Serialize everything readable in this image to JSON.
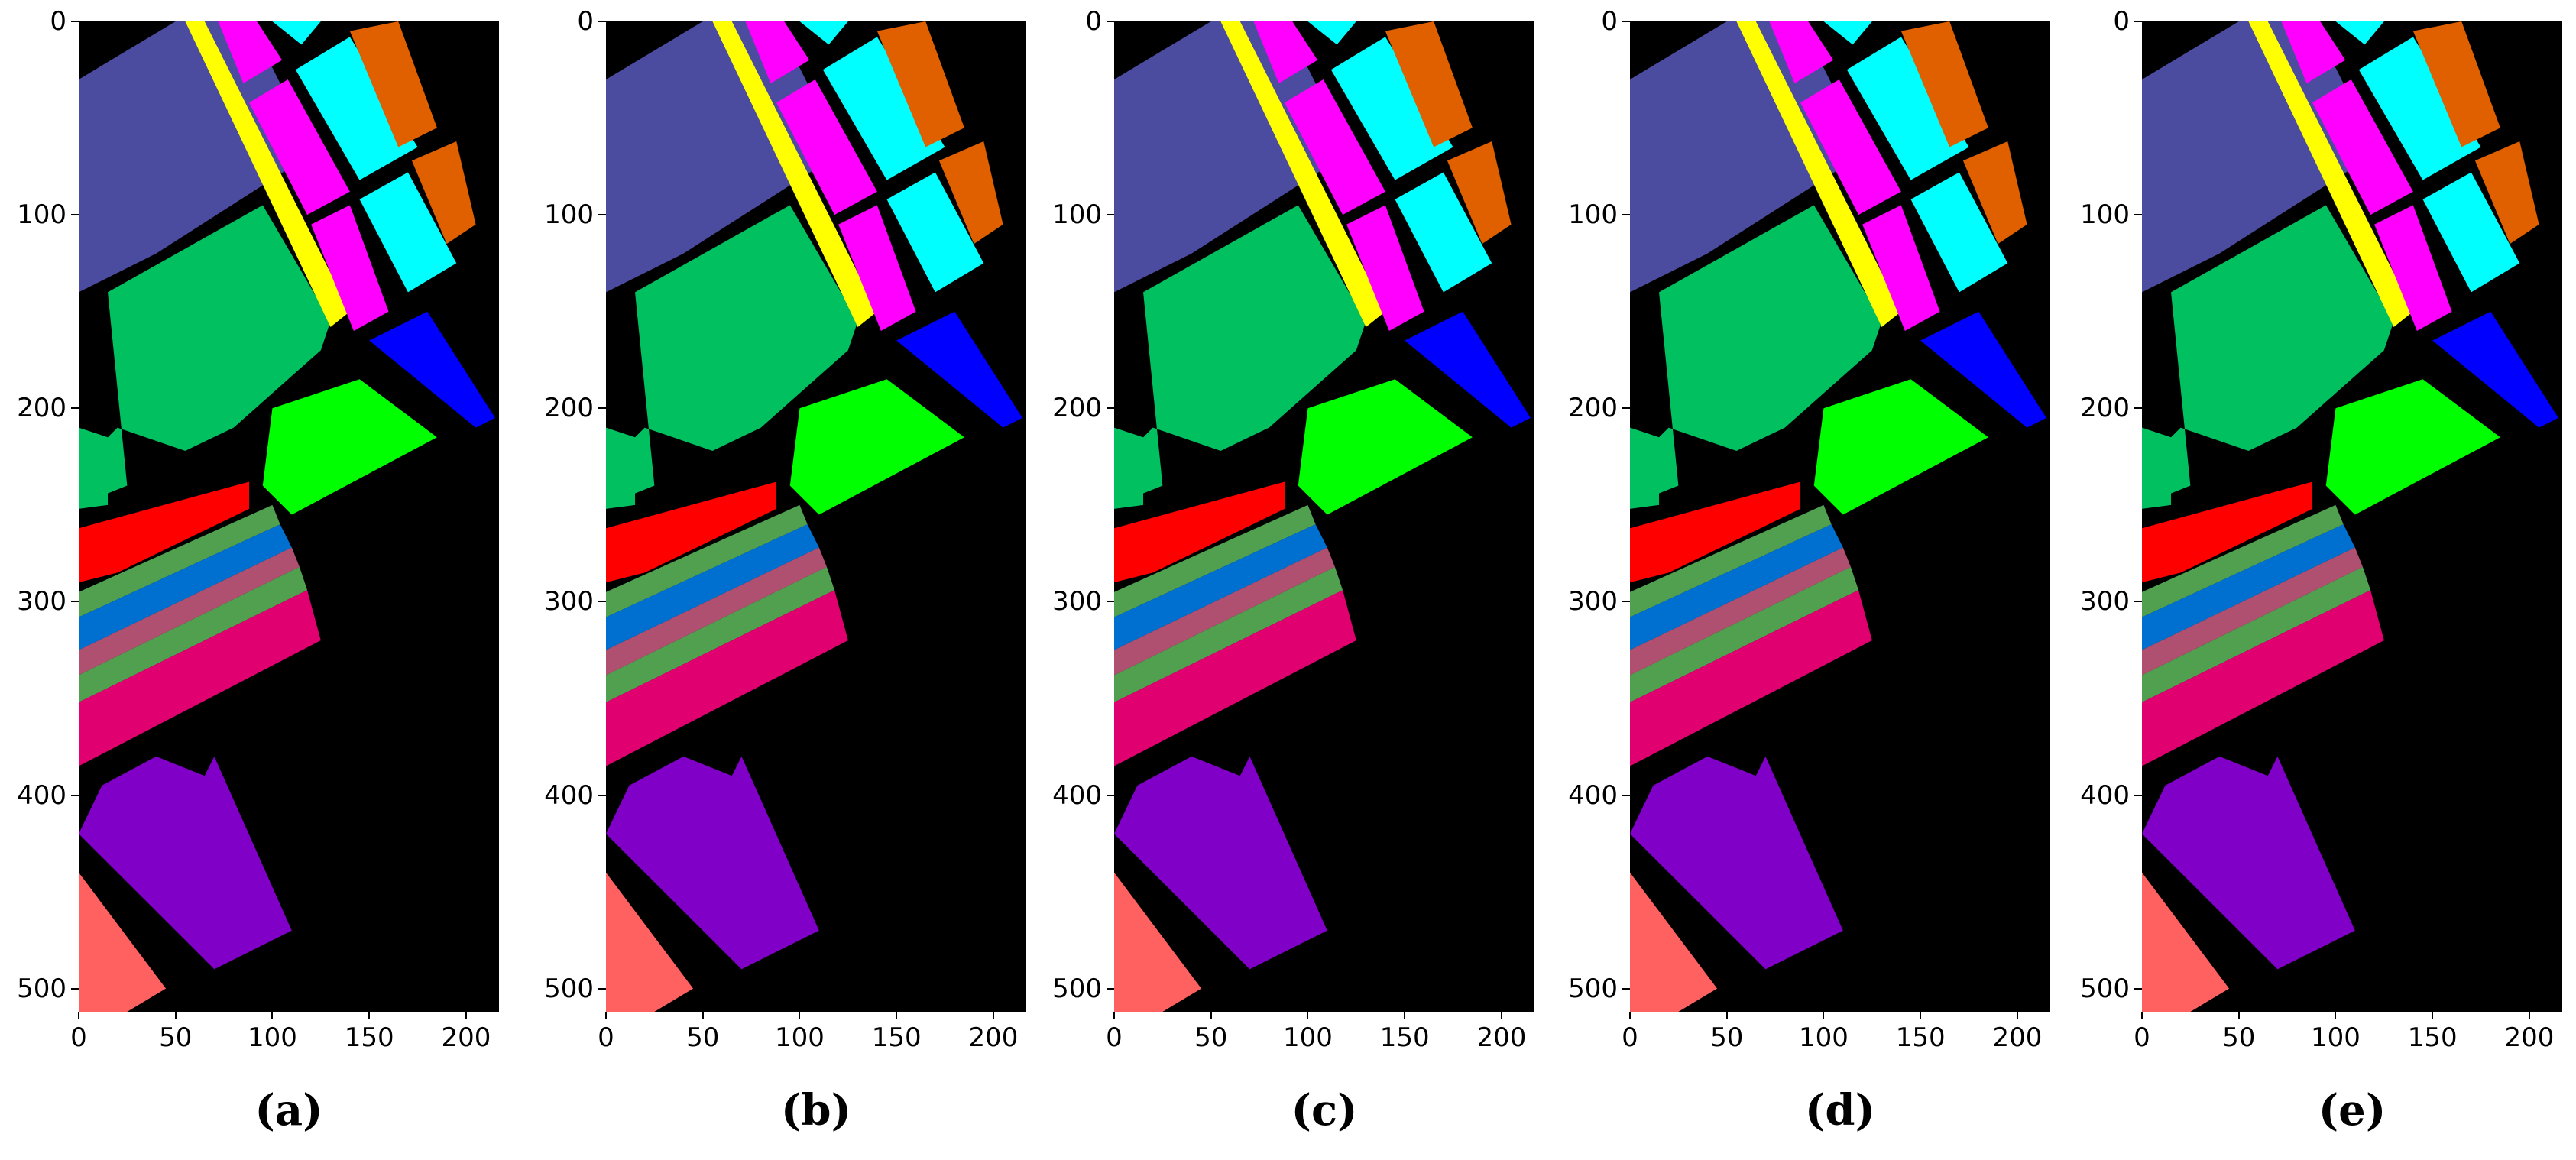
{
  "panels": [
    {
      "id": "a",
      "caption": "(a)"
    },
    {
      "id": "b",
      "caption": "(b)"
    },
    {
      "id": "c",
      "caption": "(c)"
    },
    {
      "id": "d",
      "caption": "(d)"
    },
    {
      "id": "e",
      "caption": "(e)"
    }
  ],
  "axes": {
    "y_ticks": [
      "0",
      "100",
      "200",
      "300",
      "400",
      "500"
    ],
    "x_ticks": [
      "0",
      "50",
      "100",
      "150",
      "200"
    ]
  },
  "colors": {
    "background": "#000000",
    "region_slate": "#4b4ba0",
    "region_green": "#00c060",
    "region_lime": "#00ff00",
    "region_red": "#ff0000",
    "region_blue": "#0000ff",
    "region_cyan": "#00ffff",
    "region_magenta": "#ff00ff",
    "region_yellow": "#ffff00",
    "region_orange": "#e06000",
    "region_purple": "#8000c8",
    "region_salmon": "#ff6060",
    "region_pink": "#e00070",
    "region_steelblue": "#0070d0",
    "region_olive": "#50a050",
    "region_mauve": "#b05070"
  }
}
